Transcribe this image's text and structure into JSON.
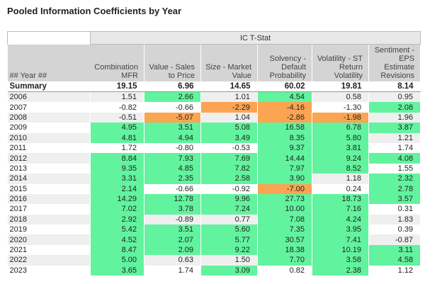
{
  "title": "Pooled Information Coefficients by Year",
  "table": {
    "group_header": "IC T-Stat",
    "year_header": "## Year ##",
    "columns": [
      "Combination MFR",
      "Value - Sales to Price",
      "Size - Market Value",
      "Solvency - Default Probability",
      "Volatility - ST Return Volatility",
      "Sentiment - EPS Estimate Revisions"
    ],
    "summary": {
      "label": "Summary",
      "cells": [
        "19.15",
        "6.96",
        "14.65",
        "60.02",
        "19.81",
        "8.14"
      ]
    },
    "colors": {
      "positive": "#62f39e",
      "negative": "#fba451"
    },
    "rows": [
      {
        "year": "2006",
        "cells": [
          "1.51",
          "2.66",
          "1.01",
          "4.54",
          "0.58",
          "0.95"
        ],
        "fills": [
          null,
          "positive",
          null,
          "positive",
          null,
          null
        ]
      },
      {
        "year": "2007",
        "cells": [
          "-0.82",
          "-0.66",
          "-2.29",
          "-4.16",
          "-1.30",
          "2.08"
        ],
        "fills": [
          null,
          null,
          "negative",
          "negative",
          null,
          "positive"
        ]
      },
      {
        "year": "2008",
        "cells": [
          "-0.51",
          "-5.07",
          "1.04",
          "-2.86",
          "-1.98",
          "1.96"
        ],
        "fills": [
          null,
          "negative",
          null,
          "negative",
          "negative",
          null
        ]
      },
      {
        "year": "2009",
        "cells": [
          "4.95",
          "3.51",
          "5.08",
          "16.58",
          "6.78",
          "3.87"
        ],
        "fills": [
          "positive",
          "positive",
          "positive",
          "positive",
          "positive",
          "positive"
        ]
      },
      {
        "year": "2010",
        "cells": [
          "4.81",
          "4.94",
          "3.49",
          "8.35",
          "5.80",
          "1.21"
        ],
        "fills": [
          "positive",
          "positive",
          "positive",
          "positive",
          "positive",
          null
        ]
      },
      {
        "year": "2011",
        "cells": [
          "1.72",
          "-0.80",
          "-0.53",
          "9.37",
          "3.81",
          "1.74"
        ],
        "fills": [
          null,
          null,
          null,
          "positive",
          "positive",
          null
        ]
      },
      {
        "year": "2012",
        "cells": [
          "8.84",
          "7.93",
          "7.69",
          "14.44",
          "9.24",
          "4.08"
        ],
        "fills": [
          "positive",
          "positive",
          "positive",
          "positive",
          "positive",
          "positive"
        ]
      },
      {
        "year": "2013",
        "cells": [
          "9.35",
          "4.85",
          "7.82",
          "7.97",
          "8.52",
          "1.55"
        ],
        "fills": [
          "positive",
          "positive",
          "positive",
          "positive",
          "positive",
          null
        ]
      },
      {
        "year": "2014",
        "cells": [
          "3.31",
          "2.35",
          "2.58",
          "3.90",
          "1.18",
          "2.32"
        ],
        "fills": [
          "positive",
          "positive",
          "positive",
          "positive",
          null,
          "positive"
        ]
      },
      {
        "year": "2015",
        "cells": [
          "2.14",
          "-0.66",
          "-0.92",
          "-7.00",
          "0.24",
          "2.78"
        ],
        "fills": [
          "positive",
          null,
          null,
          "negative",
          null,
          "positive"
        ]
      },
      {
        "year": "2016",
        "cells": [
          "14.29",
          "12.78",
          "9.96",
          "27.73",
          "18.73",
          "3.57"
        ],
        "fills": [
          "positive",
          "positive",
          "positive",
          "positive",
          "positive",
          "positive"
        ]
      },
      {
        "year": "2017",
        "cells": [
          "7.02",
          "3.78",
          "7.24",
          "10.00",
          "7.16",
          "0.31"
        ],
        "fills": [
          "positive",
          "positive",
          "positive",
          "positive",
          "positive",
          null
        ]
      },
      {
        "year": "2018",
        "cells": [
          "2.92",
          "-0.89",
          "0.77",
          "7.08",
          "4.24",
          "1.83"
        ],
        "fills": [
          "positive",
          null,
          null,
          "positive",
          "positive",
          null
        ]
      },
      {
        "year": "2019",
        "cells": [
          "5.42",
          "3.51",
          "5.60",
          "7.35",
          "3.95",
          "0.39"
        ],
        "fills": [
          "positive",
          "positive",
          "positive",
          "positive",
          "positive",
          null
        ]
      },
      {
        "year": "2020",
        "cells": [
          "4.52",
          "2.07",
          "5.77",
          "30.57",
          "7.41",
          "-0.87"
        ],
        "fills": [
          "positive",
          "positive",
          "positive",
          "positive",
          "positive",
          null
        ]
      },
      {
        "year": "2021",
        "cells": [
          "8.47",
          "2.09",
          "9.22",
          "18.38",
          "10.19",
          "3.11"
        ],
        "fills": [
          "positive",
          "positive",
          "positive",
          "positive",
          "positive",
          "positive"
        ]
      },
      {
        "year": "2022",
        "cells": [
          "5.00",
          "0.63",
          "1.50",
          "7.70",
          "3.58",
          "4.58"
        ],
        "fills": [
          "positive",
          null,
          null,
          "positive",
          "positive",
          "positive"
        ]
      },
      {
        "year": "2023",
        "cells": [
          "3.65",
          "1.74",
          "3.09",
          "0.82",
          "2.38",
          "1.12"
        ],
        "fills": [
          "positive",
          null,
          "positive",
          null,
          "positive",
          null
        ]
      }
    ]
  }
}
